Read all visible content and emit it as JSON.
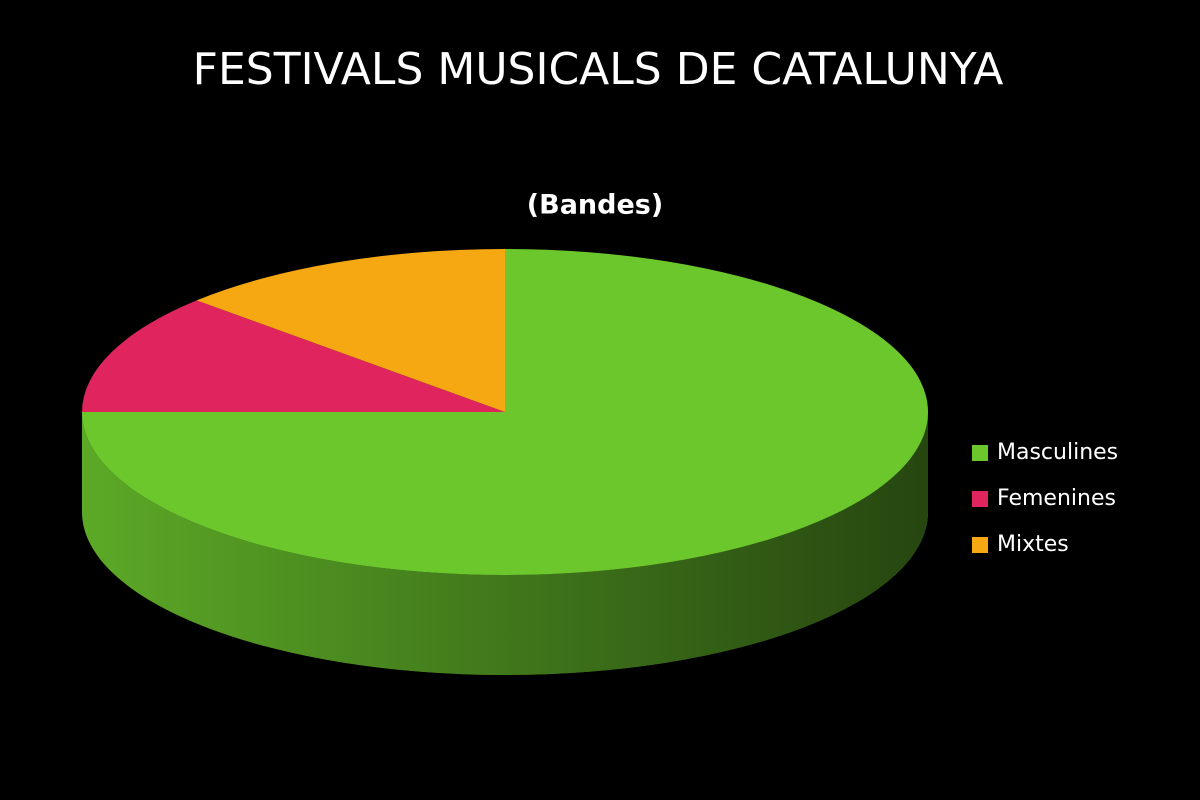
{
  "chart_data": {
    "type": "pie",
    "title": "FESTIVALS MUSICALS DE CATALUNYA",
    "subtitle": "(Bandes)",
    "categories": [
      "Masculines",
      "Femenines",
      "Mixtes"
    ],
    "values": [
      75,
      12,
      13
    ],
    "colors": [
      "#6cc72d",
      "#e0245e",
      "#f6a813"
    ],
    "legend": "right"
  }
}
